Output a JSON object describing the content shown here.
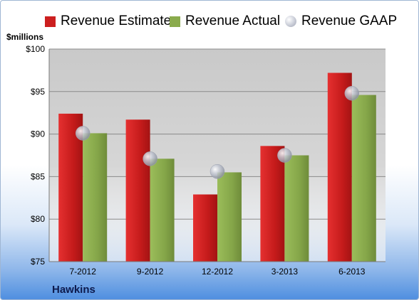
{
  "legend": {
    "items": [
      {
        "label": "Revenue Estimate",
        "color": "#cc1f1f",
        "kind": "bar"
      },
      {
        "label": "Revenue Actual",
        "color": "#8aab4d",
        "kind": "bar"
      },
      {
        "label": "Revenue GAAP",
        "color": "#b9bdc9",
        "kind": "dot"
      }
    ]
  },
  "unit_label": "$millions",
  "company": "Hawkins",
  "chart_data": {
    "type": "bar",
    "categories": [
      "7-2012",
      "9-2012",
      "12-2012",
      "3-2013",
      "6-2013"
    ],
    "series": [
      {
        "name": "Revenue Estimate",
        "values": [
          92.4,
          91.7,
          82.9,
          88.6,
          97.2
        ],
        "color": "#cc1f1f"
      },
      {
        "name": "Revenue Actual",
        "values": [
          90.1,
          87.1,
          85.5,
          87.5,
          94.6
        ],
        "color": "#8aab4d"
      }
    ],
    "markers": {
      "name": "Revenue GAAP",
      "values": [
        90.1,
        87.1,
        85.6,
        87.5,
        94.8
      ],
      "color": "#b9bdc9"
    },
    "ylim": [
      75,
      100
    ],
    "yticks": [
      "$75",
      "$80",
      "$85",
      "$90",
      "$95",
      "$100"
    ],
    "grid": true,
    "legend_position": "top"
  }
}
